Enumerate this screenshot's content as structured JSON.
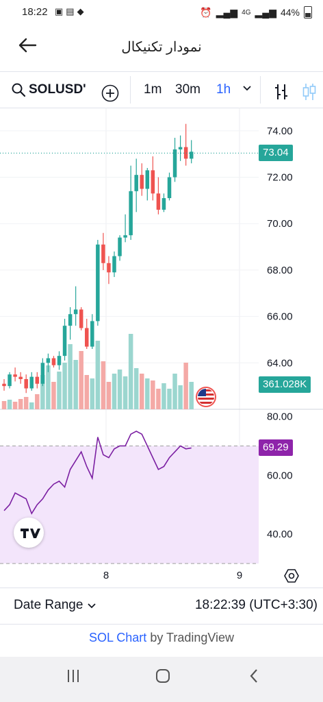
{
  "status": {
    "time": "18:22",
    "network": "4G",
    "battery": "44%"
  },
  "appbar": {
    "title": "نمودار تکنیکال"
  },
  "toolbar": {
    "symbol": "SOLUSD'",
    "intervals": [
      "1m",
      "30m",
      "1h"
    ],
    "active_interval": "1h"
  },
  "chart": {
    "last_price": "73.04",
    "volume_label": "361.028K",
    "rsi_value": "69.29",
    "price_axis": [
      "74.00",
      "72.00",
      "70.00",
      "68.00",
      "66.00",
      "64.00"
    ],
    "rsi_axis": [
      "80.00",
      "60.00",
      "40.00"
    ],
    "time_axis": [
      "8",
      "9"
    ],
    "colors": {
      "up": "#26a69a",
      "down": "#ef5350",
      "rsi_line": "#7b1fa2",
      "rsi_fill": "#f3e5fb",
      "last_price_tag": "#26a69a",
      "rsi_tag": "#8e24aa"
    }
  },
  "chart_data": {
    "type": "candlestick",
    "series": [
      {
        "name": "SOLUSD",
        "candles": [
          [
            63.1,
            63.3,
            62.8,
            63.0
          ],
          [
            63.0,
            63.6,
            62.9,
            63.5
          ],
          [
            63.5,
            63.8,
            63.2,
            63.4
          ],
          [
            63.4,
            63.6,
            63.1,
            63.3
          ],
          [
            63.3,
            63.5,
            62.7,
            62.9
          ],
          [
            62.9,
            63.6,
            62.8,
            63.4
          ],
          [
            63.4,
            63.6,
            62.9,
            63.1
          ],
          [
            63.1,
            64.2,
            63.0,
            64.0
          ],
          [
            64.0,
            64.4,
            63.6,
            64.2
          ],
          [
            64.2,
            64.3,
            63.8,
            63.9
          ],
          [
            63.9,
            64.5,
            63.7,
            64.3
          ],
          [
            64.3,
            65.9,
            64.1,
            65.6
          ],
          [
            65.6,
            66.4,
            65.0,
            66.1
          ],
          [
            66.1,
            67.3,
            65.6,
            66.3
          ],
          [
            66.3,
            66.4,
            65.4,
            65.5
          ],
          [
            65.5,
            65.9,
            64.6,
            64.7
          ],
          [
            64.7,
            66.1,
            64.6,
            65.8
          ],
          [
            65.8,
            69.3,
            65.6,
            69.1
          ],
          [
            69.1,
            69.6,
            68.0,
            68.3
          ],
          [
            68.3,
            68.6,
            67.4,
            67.9
          ],
          [
            67.9,
            68.8,
            67.7,
            68.6
          ],
          [
            68.6,
            69.5,
            68.4,
            69.4
          ],
          [
            69.4,
            70.4,
            69.2,
            69.5
          ],
          [
            69.5,
            72.5,
            69.3,
            71.4
          ],
          [
            71.4,
            72.8,
            70.5,
            72.1
          ],
          [
            72.1,
            72.6,
            71.2,
            71.5
          ],
          [
            71.5,
            72.4,
            71.0,
            72.3
          ],
          [
            72.3,
            72.9,
            71.0,
            71.3
          ],
          [
            71.3,
            72.0,
            70.4,
            70.6
          ],
          [
            70.6,
            71.3,
            70.5,
            71.1
          ],
          [
            71.1,
            72.2,
            71.0,
            72.0
          ],
          [
            72.0,
            73.7,
            71.8,
            73.2
          ],
          [
            73.2,
            73.8,
            72.7,
            73.3
          ],
          [
            73.3,
            74.3,
            72.5,
            72.8
          ],
          [
            72.8,
            73.6,
            72.6,
            73.1
          ]
        ]
      }
    ],
    "volume": [
      12,
      14,
      11,
      15,
      18,
      10,
      22,
      50,
      64,
      40,
      55,
      68,
      95,
      72,
      85,
      50,
      45,
      100,
      70,
      40,
      52,
      58,
      48,
      110,
      60,
      52,
      45,
      42,
      30,
      38,
      30,
      52,
      35,
      68,
      40
    ],
    "rsi": [
      48,
      50,
      54,
      53,
      52,
      47,
      50,
      52,
      55,
      57,
      58,
      56,
      62,
      65,
      68,
      63,
      59,
      73,
      67,
      66,
      69,
      70,
      70,
      74,
      75,
      74,
      70,
      66,
      62,
      63,
      66,
      68,
      70,
      69,
      69.3
    ],
    "y_price_range": [
      62.0,
      75.0
    ],
    "y_rsi_range": [
      30,
      82
    ],
    "rsi_band": [
      30,
      70
    ]
  },
  "footer": {
    "date_range_label": "Date Range",
    "timestamp": "18:22:39 (UTC+3:30)",
    "credit_link": "SOL Chart",
    "credit_suffix": " by TradingView"
  }
}
